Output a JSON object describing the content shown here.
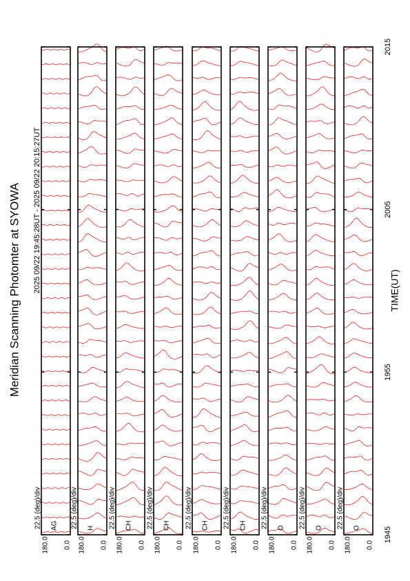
{
  "chart_data": {
    "type": "stacked-traces",
    "title": "Meridian Scanning Photomter at SYOWA",
    "subtitle": "2025 09/22 19:45:28UT - 2025 09/22 20:15:27UT",
    "xlabel": "TIME(UT)",
    "xlim": [
      0,
      30
    ],
    "xticks": [
      {
        "value": 0,
        "label": "1945"
      },
      {
        "value": 10,
        "label": "1955"
      },
      {
        "value": 20,
        "label": "2005"
      },
      {
        "value": 30,
        "label": "2015"
      }
    ],
    "color": "#ff0000",
    "panels": [
      {
        "scale": "22.5 (deg)/div",
        "channel": "AG",
        "ylim": [
          180,
          0
        ],
        "yticks": [
          {
            "value": 180,
            "label": "180.0"
          },
          {
            "value": 0,
            "label": "0.0"
          }
        ]
      },
      {
        "scale": "22.5 (deg)/div",
        "channel": "H",
        "ylim": [
          180,
          0
        ],
        "yticks": [
          {
            "value": 180,
            "label": "180.0"
          },
          {
            "value": 0,
            "label": "0.0"
          }
        ]
      },
      {
        "scale": "22.5 (deg)/div",
        "channel": "CH",
        "ylim": [
          180,
          0
        ],
        "yticks": [
          {
            "value": 180,
            "label": "180.0"
          },
          {
            "value": 0,
            "label": "0.0"
          }
        ]
      },
      {
        "scale": "22.5 (deg)/div",
        "channel": "CH",
        "ylim": [
          180,
          0
        ],
        "yticks": [
          {
            "value": 180,
            "label": "180.0"
          },
          {
            "value": 0,
            "label": "0.0"
          }
        ]
      },
      {
        "scale": "22.5 (deg)/div",
        "channel": "CH",
        "ylim": [
          180,
          0
        ],
        "yticks": [
          {
            "value": 180,
            "label": "180.0"
          },
          {
            "value": 0,
            "label": "0.0"
          }
        ]
      },
      {
        "scale": "22.5 (deg)/div",
        "channel": "CH",
        "ylim": [
          180,
          0
        ],
        "yticks": [
          {
            "value": 180,
            "label": "180.0"
          },
          {
            "value": 0,
            "label": "0.0"
          }
        ]
      },
      {
        "scale": "22.5 (deg)/div",
        "channel": "O",
        "ylim": [
          180,
          0
        ],
        "yticks": [
          {
            "value": 180,
            "label": "180.0"
          },
          {
            "value": 0,
            "label": "0.0"
          }
        ]
      },
      {
        "scale": "22.5 (deg)/div",
        "channel": "O",
        "ylim": [
          180,
          0
        ],
        "yticks": [
          {
            "value": 180,
            "label": "180.0"
          },
          {
            "value": 0,
            "label": "0.0"
          }
        ]
      },
      {
        "scale": "22.5 (deg)/div",
        "channel": "O",
        "ylim": [
          180,
          0
        ],
        "yticks": [
          {
            "value": 180,
            "label": "180.0"
          },
          {
            "value": 0,
            "label": "0.0"
          }
        ]
      }
    ]
  }
}
